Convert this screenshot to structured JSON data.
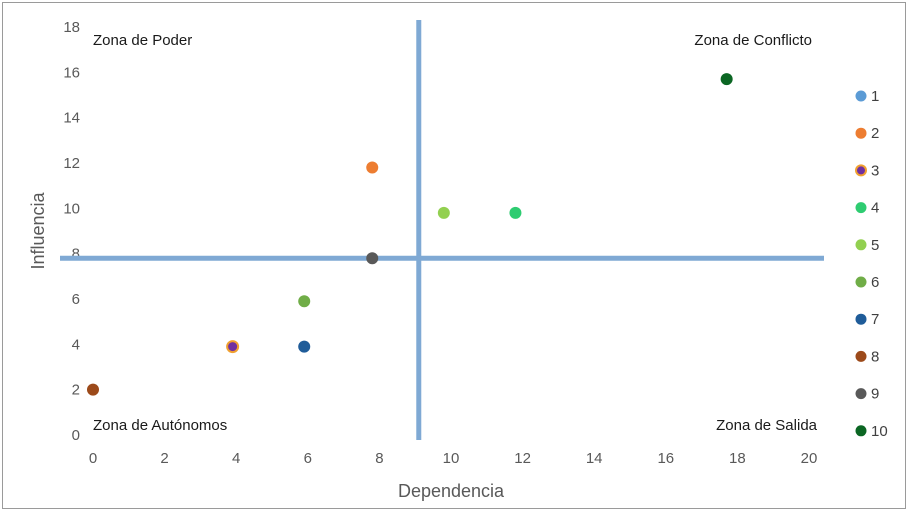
{
  "chart_data": {
    "type": "scatter",
    "title": "",
    "xlabel": "Dependencia",
    "ylabel": "Influencia",
    "xlim": [
      0,
      20
    ],
    "ylim": [
      0,
      18
    ],
    "x_ticks": [
      "0",
      "2",
      "4",
      "6",
      "8",
      "10",
      "12",
      "14",
      "16",
      "18",
      "20"
    ],
    "y_ticks": [
      "0",
      "2",
      "4",
      "6",
      "8",
      "10",
      "12",
      "14",
      "16",
      "18"
    ],
    "grid": false,
    "legend_position": "right",
    "divider_lines": {
      "vertical_x": 9.1,
      "horizontal_y": 7.8,
      "color": "#7fa9d4"
    },
    "quadrant_labels": {
      "top_left": "Zona de Poder",
      "top_right": "Zona de Conflicto",
      "bottom_left": "Zona de Autónomos",
      "bottom_right": "Zona de Salida"
    },
    "series": [
      {
        "name": "1",
        "x": null,
        "y": null,
        "color": "#5b9bd5"
      },
      {
        "name": "2",
        "x": 7.8,
        "y": 11.8,
        "color": "#ed7d31"
      },
      {
        "name": "3",
        "x": 3.9,
        "y": 3.9,
        "color": "#7030a0",
        "edge": "#f0a030"
      },
      {
        "name": "4",
        "x": 11.8,
        "y": 9.8,
        "color": "#2ecc71"
      },
      {
        "name": "5",
        "x": 9.8,
        "y": 9.8,
        "color": "#92d050"
      },
      {
        "name": "6",
        "x": 5.9,
        "y": 5.9,
        "color": "#70ad47"
      },
      {
        "name": "7",
        "x": 5.9,
        "y": 3.9,
        "color": "#1f5c99"
      },
      {
        "name": "8",
        "x": 0.0,
        "y": 2.0,
        "color": "#9c4a1a"
      },
      {
        "name": "9",
        "x": 7.8,
        "y": 7.8,
        "color": "#595959"
      },
      {
        "name": "10",
        "x": 17.7,
        "y": 15.7,
        "color": "#0b6623"
      }
    ]
  }
}
